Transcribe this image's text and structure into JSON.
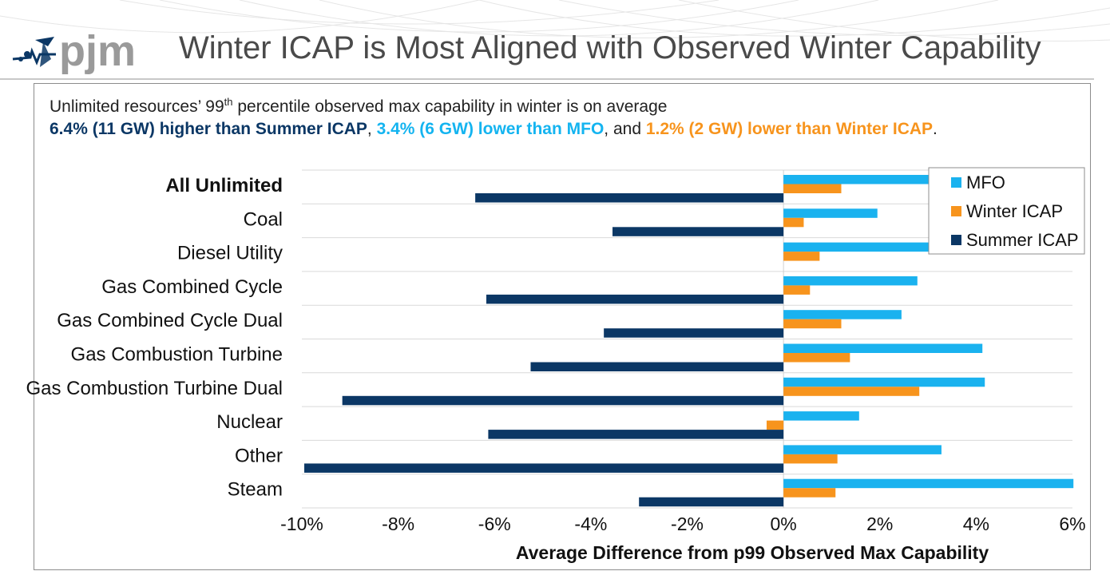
{
  "header": {
    "logo_text": "pjm",
    "title": "Winter ICAP is Most Aligned with Observed Winter Capability"
  },
  "subtitle": {
    "line1_prefix": "Unlimited resources’ 99",
    "line1_sup": "th",
    "line1_suffix": " percentile observed max capability in winter is on average",
    "line2_part1": "6.4% (11 GW) higher than Summer ICAP",
    "line2_sep1": ", ",
    "line2_part2": "3.4% (6 GW) lower than MFO",
    "line2_sep2": ", and ",
    "line2_part3": "1.2% (2 GW) lower than Winter ICAP",
    "line2_end": "."
  },
  "colors": {
    "mfo": "#1ab2ef",
    "winter_icap": "#f7941d",
    "summer_icap": "#0b3765",
    "title": "#4a4a4a",
    "grid": "#d9d9d9"
  },
  "chart_data": {
    "type": "bar",
    "orientation": "horizontal",
    "categories": [
      "All Unlimited",
      "Coal",
      "Diesel Utility",
      "Gas Combined Cycle",
      "Gas Combined Cycle Dual",
      "Gas Combustion Turbine",
      "Gas Combustion Turbine Dual",
      "Nuclear",
      "Other",
      "Steam"
    ],
    "bold_categories": [
      "All Unlimited"
    ],
    "series": [
      {
        "name": "MFO",
        "values": [
          3.4,
          1.95,
          3.15,
          2.78,
          2.45,
          4.13,
          4.18,
          1.57,
          3.28,
          6.02
        ]
      },
      {
        "name": "Winter ICAP",
        "values": [
          1.2,
          0.42,
          0.75,
          0.55,
          1.2,
          1.38,
          2.82,
          -0.35,
          1.12,
          1.08
        ]
      },
      {
        "name": "Summer ICAP",
        "values": [
          -6.4,
          -3.55,
          0,
          -6.17,
          -3.73,
          -5.25,
          -9.16,
          -6.13,
          -9.95,
          -3.0
        ]
      }
    ],
    "xlim": [
      -10,
      6
    ],
    "xticks": [
      -10,
      -8,
      -6,
      -4,
      -2,
      0,
      2,
      4,
      6
    ],
    "xtick_labels": [
      "-10%",
      "-8%",
      "-6%",
      "-4%",
      "-2%",
      "0%",
      "2%",
      "4%",
      "6%"
    ],
    "xlabel": "Average Difference from p99 Observed Max Capability",
    "ylabel": "",
    "legend": [
      "MFO",
      "Winter ICAP",
      "Summer ICAP"
    ],
    "legend_position": "top-right",
    "grid": true
  }
}
